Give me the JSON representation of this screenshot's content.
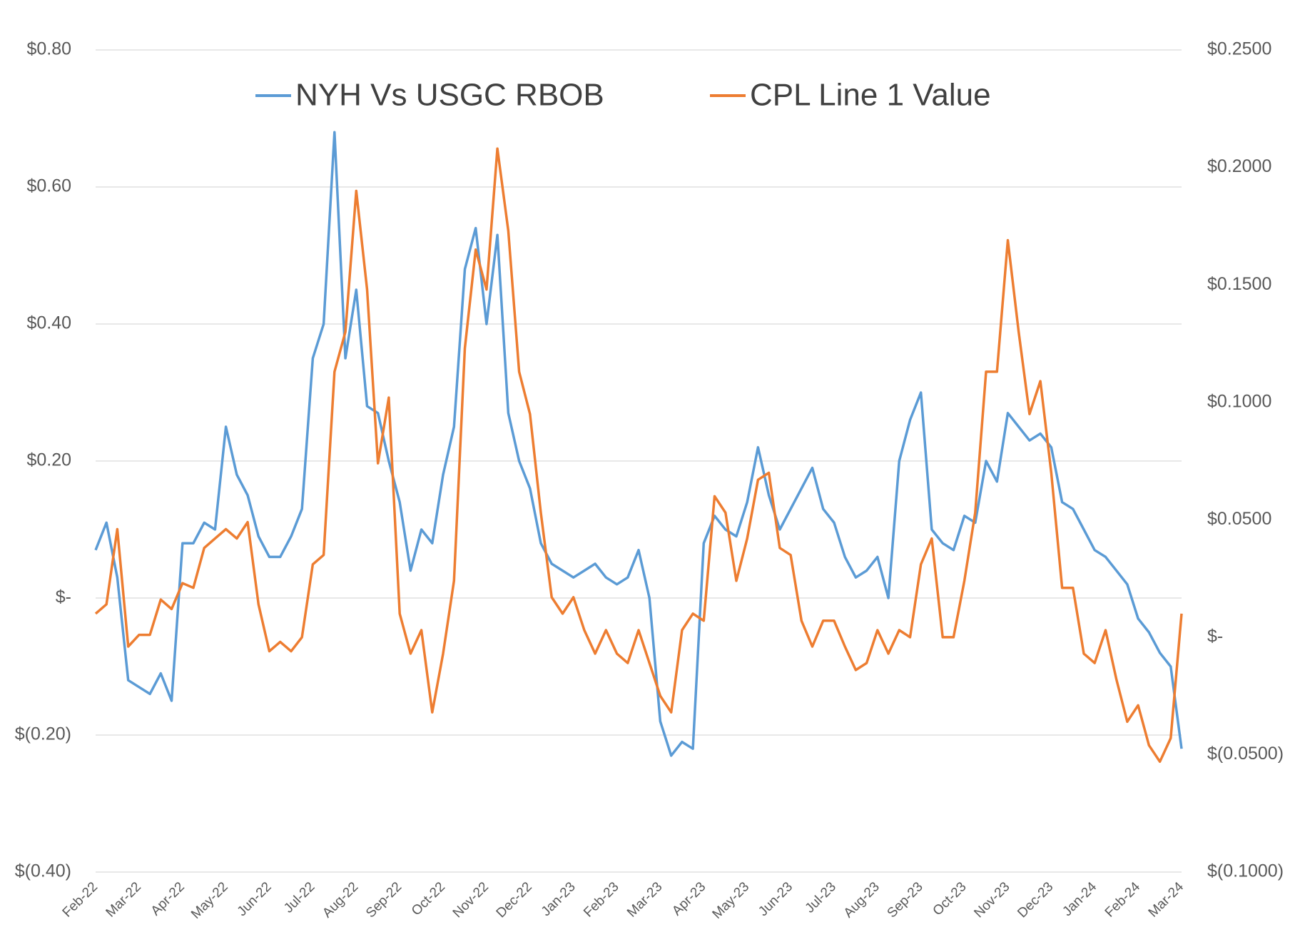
{
  "chart_data": {
    "type": "line",
    "categories": [
      "Feb-22",
      null,
      null,
      null,
      "Mar-22",
      null,
      null,
      null,
      "Apr-22",
      null,
      null,
      null,
      "May-22",
      null,
      null,
      null,
      "Jun-22",
      null,
      null,
      null,
      "Jul-22",
      null,
      null,
      null,
      "Aug-22",
      null,
      null,
      null,
      "Sep-22",
      null,
      null,
      null,
      "Oct-22",
      null,
      null,
      null,
      "Nov-22",
      null,
      null,
      null,
      "Dec-22",
      null,
      null,
      null,
      "Jan-23",
      null,
      null,
      null,
      "Feb-23",
      null,
      null,
      null,
      "Mar-23",
      null,
      null,
      null,
      "Apr-23",
      null,
      null,
      null,
      "May-23",
      null,
      null,
      null,
      "Jun-23",
      null,
      null,
      null,
      "Jul-23",
      null,
      null,
      null,
      "Aug-23",
      null,
      null,
      null,
      "Sep-23",
      null,
      null,
      null,
      "Oct-23",
      null,
      null,
      null,
      "Nov-23",
      null,
      null,
      null,
      "Dec-23",
      null,
      null,
      null,
      "Jan-24",
      null,
      null,
      null,
      "Feb-24",
      null,
      null,
      null,
      "Mar-24"
    ],
    "series": [
      {
        "name": "NYH Vs USGC RBOB",
        "color": "#5b9bd5",
        "axis": "y",
        "values": [
          0.07,
          0.11,
          0.03,
          -0.12,
          -0.13,
          -0.14,
          -0.11,
          -0.15,
          0.08,
          0.08,
          0.11,
          0.1,
          0.25,
          0.18,
          0.15,
          0.09,
          0.06,
          0.06,
          0.09,
          0.13,
          0.35,
          0.4,
          0.68,
          0.35,
          0.45,
          0.28,
          0.27,
          0.2,
          0.14,
          0.04,
          0.1,
          0.08,
          0.18,
          0.25,
          0.48,
          0.54,
          0.4,
          0.53,
          0.27,
          0.2,
          0.16,
          0.08,
          0.05,
          0.04,
          0.03,
          0.04,
          0.05,
          0.03,
          0.02,
          0.03,
          0.07,
          0.0,
          -0.18,
          -0.23,
          -0.21,
          -0.22,
          0.08,
          0.12,
          0.1,
          0.09,
          0.14,
          0.22,
          0.15,
          0.1,
          0.13,
          0.16,
          0.19,
          0.13,
          0.11,
          0.06,
          0.03,
          0.04,
          0.06,
          0.0,
          0.2,
          0.26,
          0.3,
          0.1,
          0.08,
          0.07,
          0.12,
          0.11,
          0.2,
          0.17,
          0.27,
          0.25,
          0.23,
          0.24,
          0.22,
          0.14,
          0.13,
          0.1,
          0.07,
          0.06,
          0.04,
          0.02,
          -0.03,
          -0.05,
          -0.08,
          -0.1,
          -0.22
        ]
      },
      {
        "name": "CPL Line 1 Value",
        "color": "#ed7d31",
        "axis": "y2",
        "values": [
          0.01,
          0.014,
          0.046,
          -0.004,
          0.001,
          0.001,
          0.016,
          0.012,
          0.023,
          0.021,
          0.038,
          0.042,
          0.046,
          0.042,
          0.049,
          0.014,
          -0.006,
          -0.002,
          -0.006,
          0.0,
          0.031,
          0.035,
          0.113,
          0.13,
          0.19,
          0.148,
          0.074,
          0.102,
          0.01,
          -0.007,
          0.003,
          -0.032,
          -0.007,
          0.024,
          0.123,
          0.165,
          0.148,
          0.208,
          0.173,
          0.113,
          0.095,
          0.053,
          0.017,
          0.01,
          0.017,
          0.003,
          -0.007,
          0.003,
          -0.007,
          -0.011,
          0.003,
          -0.011,
          -0.025,
          -0.032,
          0.003,
          0.01,
          0.007,
          0.06,
          0.053,
          0.024,
          0.042,
          0.067,
          0.07,
          0.038,
          0.035,
          0.007,
          -0.004,
          0.007,
          0.007,
          -0.004,
          -0.014,
          -0.011,
          0.003,
          -0.007,
          0.003,
          0.0,
          0.031,
          0.042,
          0.0,
          0.0,
          0.024,
          0.053,
          0.113,
          0.113,
          0.169,
          0.13,
          0.095,
          0.109,
          0.07,
          0.021,
          0.021,
          -0.007,
          -0.011,
          0.003,
          -0.018,
          -0.036,
          -0.029,
          -0.046,
          -0.053,
          -0.043,
          0.01
        ]
      }
    ],
    "ylim": [
      -0.4,
      0.8
    ],
    "yticks": [
      {
        "value": -0.4,
        "label": "$(0.40)"
      },
      {
        "value": -0.2,
        "label": "$(0.20)"
      },
      {
        "value": 0,
        "label": "$-"
      },
      {
        "value": 0.2,
        "label": "$0.20"
      },
      {
        "value": 0.4,
        "label": "$0.40"
      },
      {
        "value": 0.6,
        "label": "$0.60"
      },
      {
        "value": 0.8,
        "label": "$0.80"
      }
    ],
    "y2lim": [
      -0.1,
      0.25
    ],
    "y2ticks": [
      {
        "value": -0.1,
        "label": "$(0.1000)"
      },
      {
        "value": -0.05,
        "label": "$(0.0500)"
      },
      {
        "value": 0,
        "label": "$-"
      },
      {
        "value": 0.05,
        "label": "$0.0500"
      },
      {
        "value": 0.1,
        "label": "$0.1000"
      },
      {
        "value": 0.15,
        "label": "$0.1500"
      },
      {
        "value": 0.2,
        "label": "$0.2000"
      },
      {
        "value": 0.25,
        "label": "$0.2500"
      }
    ],
    "grid": true,
    "legend": "top"
  }
}
